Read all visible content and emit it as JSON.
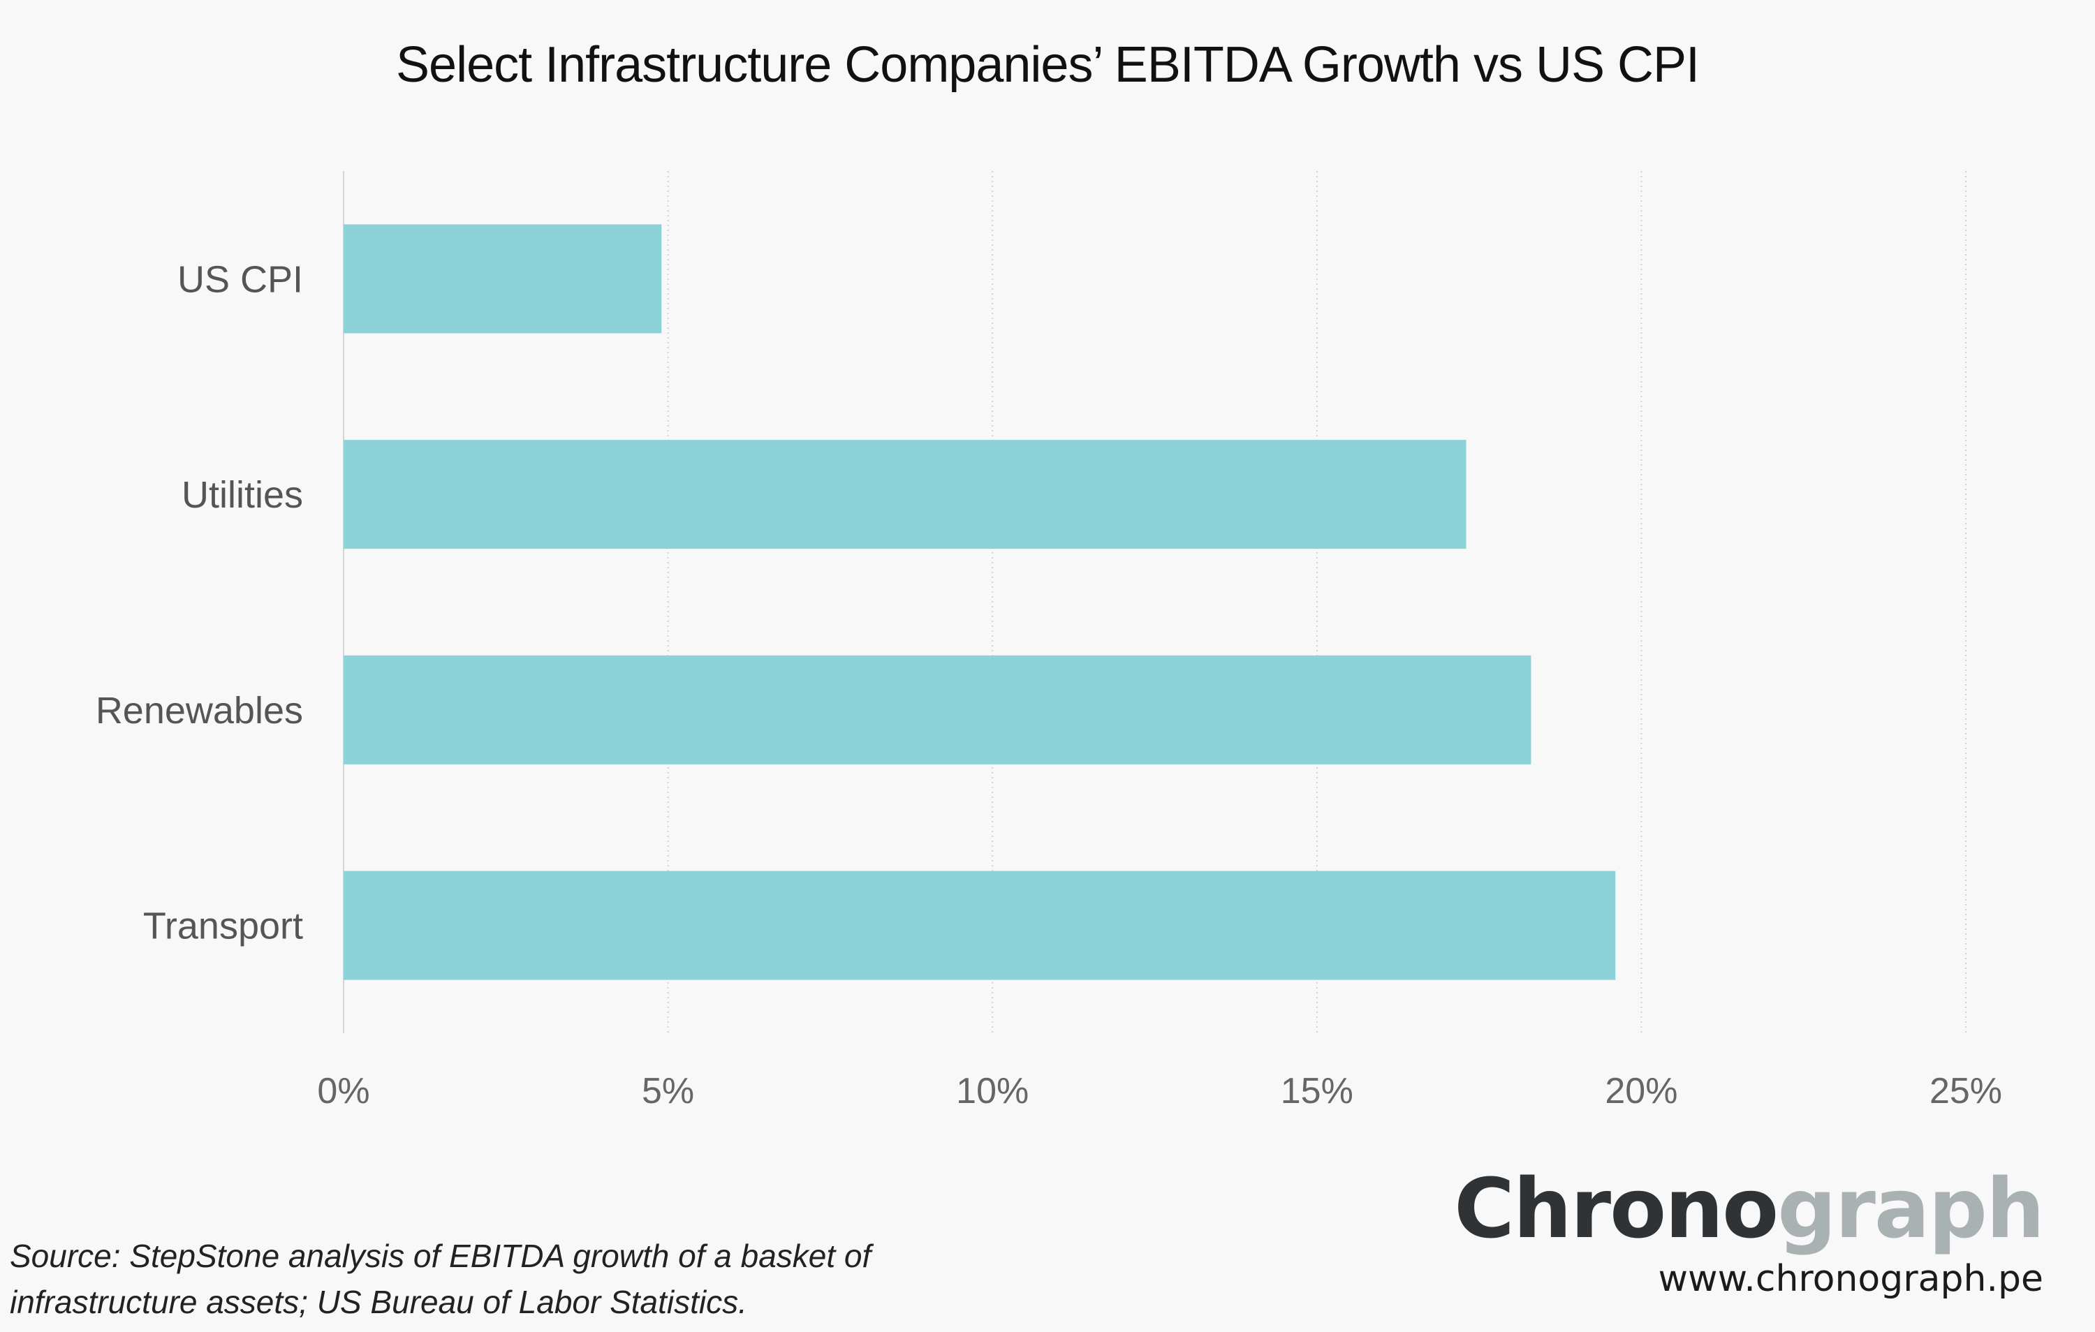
{
  "chart_data": {
    "type": "bar",
    "orientation": "horizontal",
    "title": "Select Infrastructure Companies’ EBITDA Growth vs US CPI",
    "xlabel": "",
    "ylabel": "",
    "categories": [
      "US CPI",
      "Utilities",
      "Renewables",
      "Transport"
    ],
    "values": [
      4.9,
      17.3,
      18.3,
      19.6
    ],
    "xlim": [
      0,
      25
    ],
    "x_ticks": [
      0,
      5,
      10,
      15,
      20,
      25
    ],
    "x_tick_labels": [
      "0%",
      "5%",
      "10%",
      "15%",
      "20%",
      "25%"
    ],
    "grid": "vertical dotted",
    "bar_color": "#8cd2d8"
  },
  "source": {
    "line1": "Source: StepStone analysis of EBITDA growth of a basket of",
    "line2": "infrastructure assets; US Bureau of Labor Statistics."
  },
  "brand": {
    "logo_part1": "Chrono",
    "logo_part2": "graph",
    "url": "www.chronograph.pe",
    "color_dark": "#2f3336",
    "color_light": "#a9b1b3"
  }
}
